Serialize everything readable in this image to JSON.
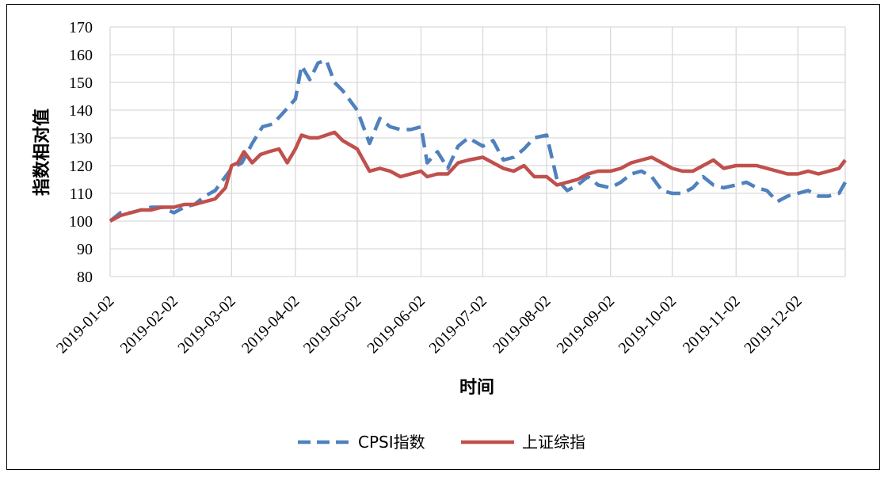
{
  "chart_data": {
    "type": "line",
    "title": "",
    "xlabel": "时间",
    "ylabel": "指数相对值",
    "ylim": [
      80,
      170
    ],
    "yticks": [
      "80",
      "90",
      "100",
      "110",
      "120",
      "130",
      "140",
      "150",
      "160",
      "170"
    ],
    "xlim": [
      "2019-01-02",
      "2019-12-25"
    ],
    "xticks": [
      "2019-01-02",
      "2019-02-02",
      "2019-03-02",
      "2019-04-02",
      "2019-05-02",
      "2019-06-02",
      "2019-07-02",
      "2019-08-02",
      "2019-09-02",
      "2019-10-02",
      "2019-11-02",
      "2019-12-02"
    ],
    "grid": true,
    "legend_position": "bottom",
    "series": [
      {
        "name": "CPSI指数",
        "color": "#4f81bd",
        "style": "dashed",
        "x": [
          "2019-01-02",
          "2019-01-07",
          "2019-01-12",
          "2019-01-17",
          "2019-01-22",
          "2019-01-27",
          "2019-02-02",
          "2019-02-07",
          "2019-02-12",
          "2019-02-17",
          "2019-02-22",
          "2019-02-27",
          "2019-03-02",
          "2019-03-07",
          "2019-03-12",
          "2019-03-17",
          "2019-03-22",
          "2019-03-27",
          "2019-04-02",
          "2019-04-05",
          "2019-04-09",
          "2019-04-13",
          "2019-04-17",
          "2019-04-21",
          "2019-04-25",
          "2019-05-02",
          "2019-05-08",
          "2019-05-13",
          "2019-05-18",
          "2019-05-23",
          "2019-05-28",
          "2019-06-02",
          "2019-06-05",
          "2019-06-10",
          "2019-06-15",
          "2019-06-20",
          "2019-06-25",
          "2019-07-02",
          "2019-07-07",
          "2019-07-12",
          "2019-07-17",
          "2019-07-22",
          "2019-07-27",
          "2019-08-02",
          "2019-08-07",
          "2019-08-12",
          "2019-08-17",
          "2019-08-22",
          "2019-08-27",
          "2019-09-02",
          "2019-09-07",
          "2019-09-12",
          "2019-09-17",
          "2019-09-22",
          "2019-09-27",
          "2019-10-02",
          "2019-10-07",
          "2019-10-12",
          "2019-10-17",
          "2019-10-22",
          "2019-10-27",
          "2019-11-02",
          "2019-11-07",
          "2019-11-12",
          "2019-11-17",
          "2019-11-22",
          "2019-11-27",
          "2019-12-02",
          "2019-12-07",
          "2019-12-12",
          "2019-12-17",
          "2019-12-22",
          "2019-12-25"
        ],
        "values": [
          100,
          103,
          103,
          104,
          105,
          105,
          103,
          105,
          106,
          109,
          111,
          116,
          119,
          121,
          128,
          134,
          135,
          139,
          144,
          156,
          151,
          157,
          158,
          150,
          147,
          140,
          128,
          137,
          134,
          133,
          133,
          134,
          121,
          125,
          119,
          127,
          130,
          127,
          129,
          122,
          123,
          126,
          130,
          131,
          115,
          111,
          113,
          116,
          113,
          112,
          114,
          117,
          118,
          116,
          111,
          110,
          110,
          112,
          116,
          113,
          112,
          113,
          114,
          112,
          111,
          107,
          109,
          110,
          111,
          109,
          109,
          110,
          114
        ]
      },
      {
        "name": "上证综指",
        "color": "#c0504d",
        "style": "solid",
        "x": [
          "2019-01-02",
          "2019-01-07",
          "2019-01-12",
          "2019-01-17",
          "2019-01-22",
          "2019-01-27",
          "2019-02-02",
          "2019-02-07",
          "2019-02-12",
          "2019-02-17",
          "2019-02-22",
          "2019-02-27",
          "2019-03-02",
          "2019-03-05",
          "2019-03-08",
          "2019-03-12",
          "2019-03-16",
          "2019-03-20",
          "2019-03-25",
          "2019-03-29",
          "2019-04-02",
          "2019-04-05",
          "2019-04-09",
          "2019-04-13",
          "2019-04-17",
          "2019-04-21",
          "2019-04-25",
          "2019-05-02",
          "2019-05-08",
          "2019-05-13",
          "2019-05-18",
          "2019-05-23",
          "2019-05-28",
          "2019-06-02",
          "2019-06-05",
          "2019-06-10",
          "2019-06-15",
          "2019-06-20",
          "2019-06-25",
          "2019-07-02",
          "2019-07-07",
          "2019-07-12",
          "2019-07-17",
          "2019-07-22",
          "2019-07-27",
          "2019-08-02",
          "2019-08-07",
          "2019-08-12",
          "2019-08-17",
          "2019-08-22",
          "2019-08-27",
          "2019-09-02",
          "2019-09-07",
          "2019-09-12",
          "2019-09-17",
          "2019-09-22",
          "2019-09-27",
          "2019-10-02",
          "2019-10-07",
          "2019-10-12",
          "2019-10-17",
          "2019-10-22",
          "2019-10-27",
          "2019-11-02",
          "2019-11-07",
          "2019-11-12",
          "2019-11-17",
          "2019-11-22",
          "2019-11-27",
          "2019-12-02",
          "2019-12-07",
          "2019-12-12",
          "2019-12-17",
          "2019-12-22",
          "2019-12-25"
        ],
        "values": [
          100,
          102,
          103,
          104,
          104,
          105,
          105,
          106,
          106,
          107,
          108,
          112,
          120,
          121,
          125,
          121,
          124,
          125,
          126,
          121,
          126,
          131,
          130,
          130,
          131,
          132,
          129,
          126,
          118,
          119,
          118,
          116,
          117,
          118,
          116,
          117,
          117,
          121,
          122,
          123,
          121,
          119,
          118,
          120,
          116,
          116,
          113,
          114,
          115,
          117,
          118,
          118,
          119,
          121,
          122,
          123,
          121,
          119,
          118,
          118,
          120,
          122,
          119,
          120,
          120,
          120,
          119,
          118,
          117,
          117,
          118,
          117,
          118,
          119,
          122
        ]
      }
    ]
  }
}
